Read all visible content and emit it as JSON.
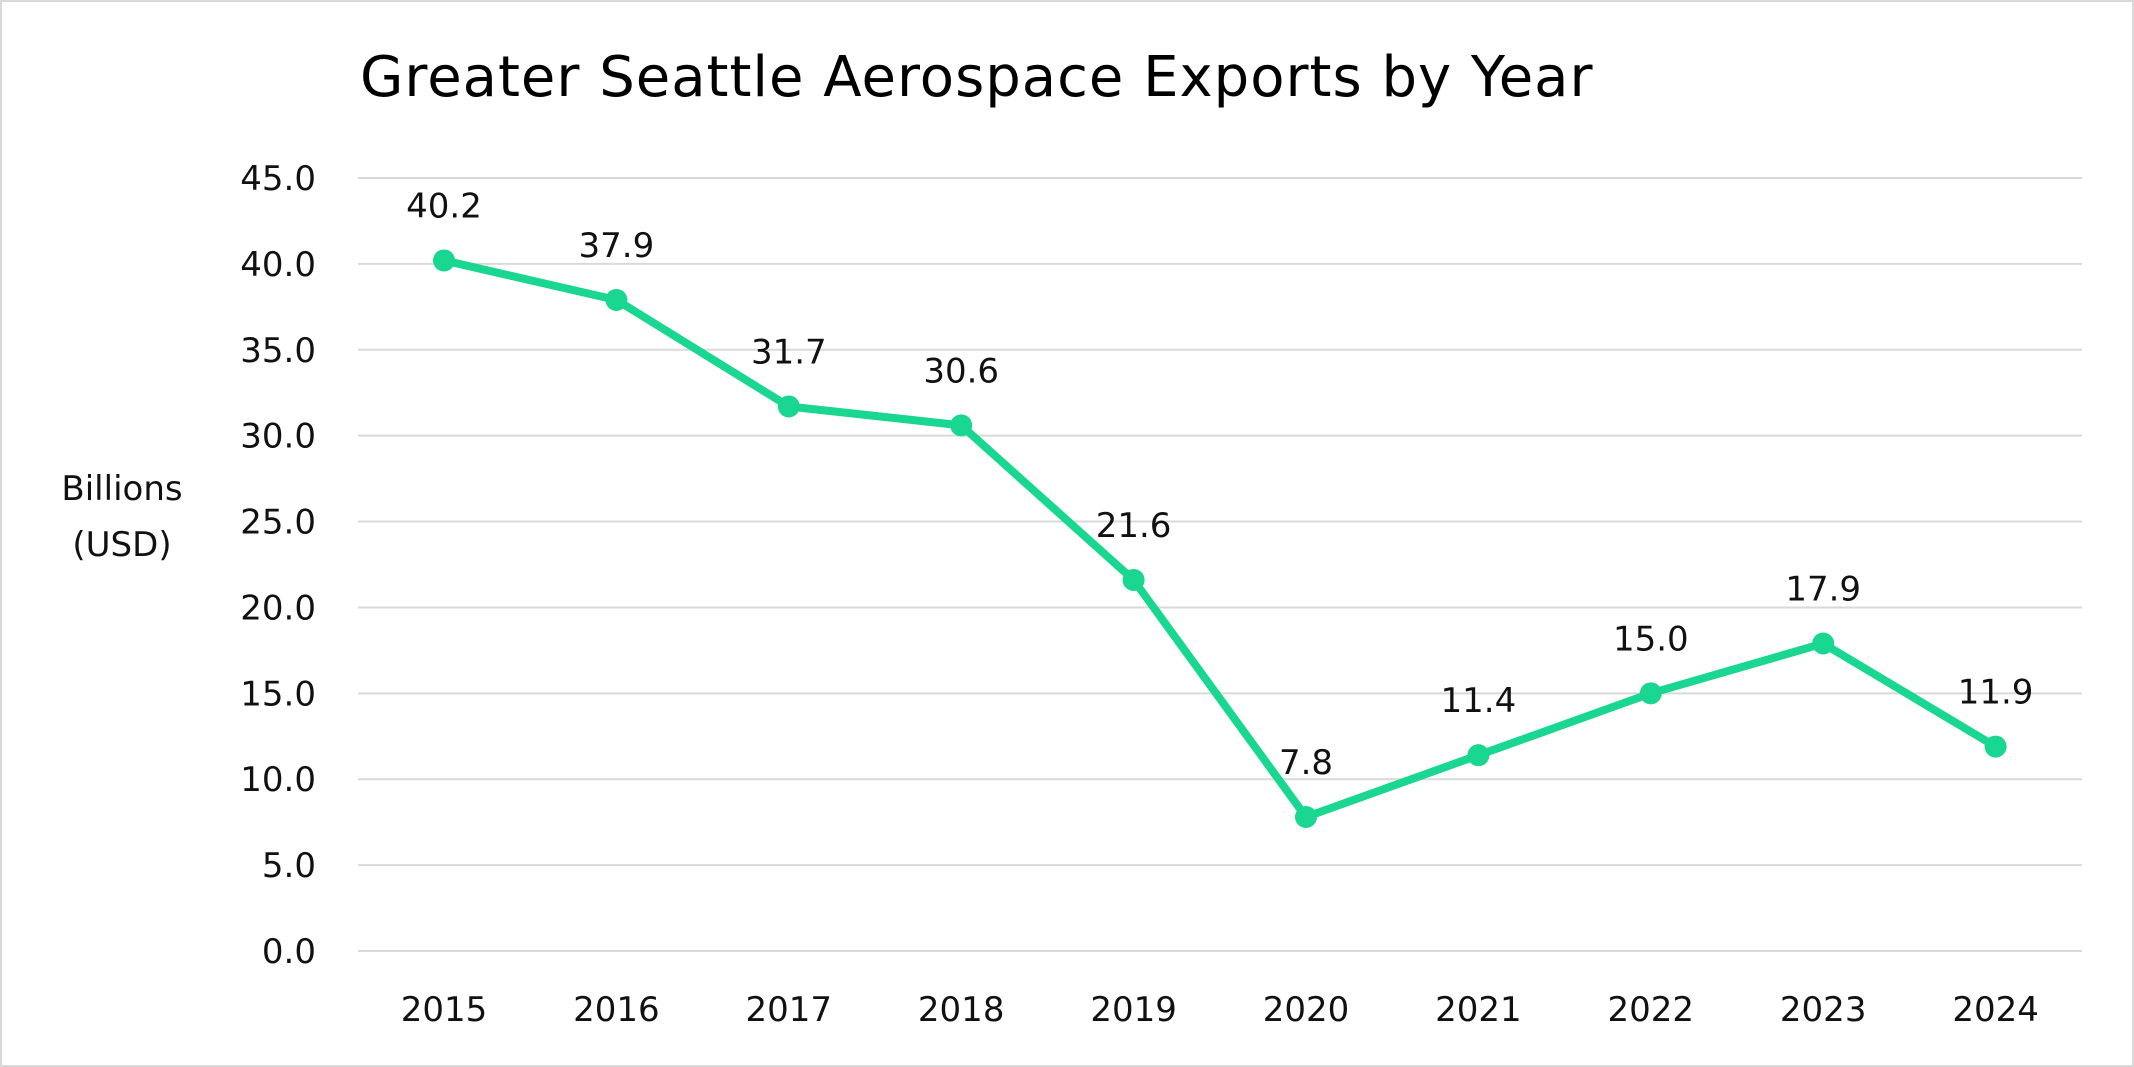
{
  "chart_data": {
    "type": "line",
    "title": "Greater Seattle Aerospace Exports by Year",
    "ylabel_lines": [
      "Billions",
      "(USD)"
    ],
    "xlabel": "",
    "categories": [
      "2015",
      "2016",
      "2017",
      "2018",
      "2019",
      "2020",
      "2021",
      "2022",
      "2023",
      "2024"
    ],
    "series": [
      {
        "values": [
          40.2,
          37.9,
          31.7,
          30.6,
          21.6,
          7.8,
          11.4,
          15.0,
          17.9,
          11.9
        ],
        "value_labels": [
          "40.2",
          "37.9",
          "31.7",
          "30.6",
          "21.6",
          "7.8",
          "11.4",
          "15.0",
          "17.9",
          "11.9"
        ]
      }
    ],
    "yticks": [
      "0.0",
      "5.0",
      "10.0",
      "15.0",
      "20.0",
      "25.0",
      "30.0",
      "35.0",
      "40.0",
      "45.0"
    ],
    "ylim": [
      0,
      45
    ],
    "grid": true,
    "legend": "none",
    "colors": {
      "line": "#19d690",
      "grid": "#d9d9d9",
      "frame": "#d9d9d9"
    }
  }
}
